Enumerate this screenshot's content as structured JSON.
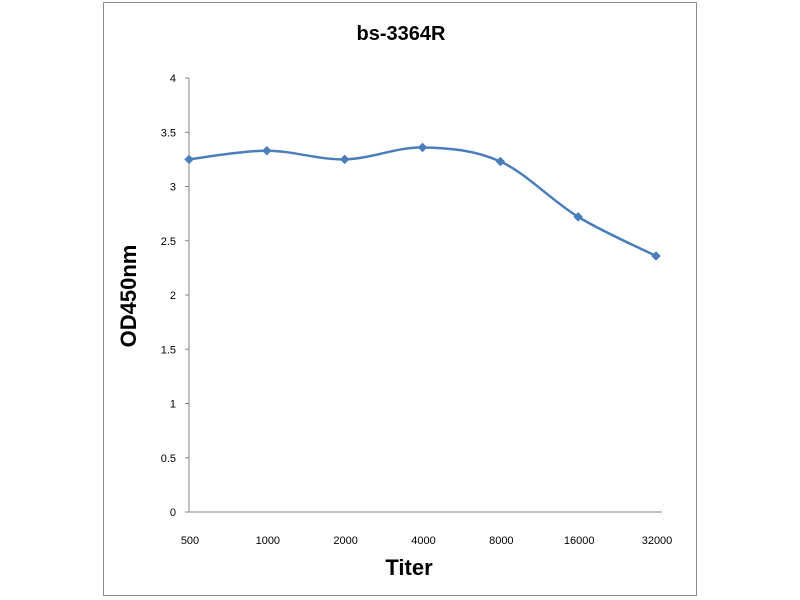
{
  "chart_data": {
    "type": "line",
    "title": "bs-3364R",
    "xlabel": "Titer",
    "ylabel": "OD450nm",
    "categories": [
      "500",
      "1000",
      "2000",
      "4000",
      "8000",
      "16000",
      "32000"
    ],
    "series": [
      {
        "values": [
          3.25,
          3.33,
          3.25,
          3.36,
          3.23,
          2.72,
          2.36
        ],
        "color": "#4a7ebb",
        "marker": "diamond",
        "smooth": true
      }
    ],
    "ylim": [
      0,
      4
    ],
    "yticks": [
      "0",
      "0.5",
      "1",
      "1.5",
      "2",
      "2.5",
      "3",
      "3.5",
      "4"
    ],
    "grid": false,
    "legend": "none"
  }
}
